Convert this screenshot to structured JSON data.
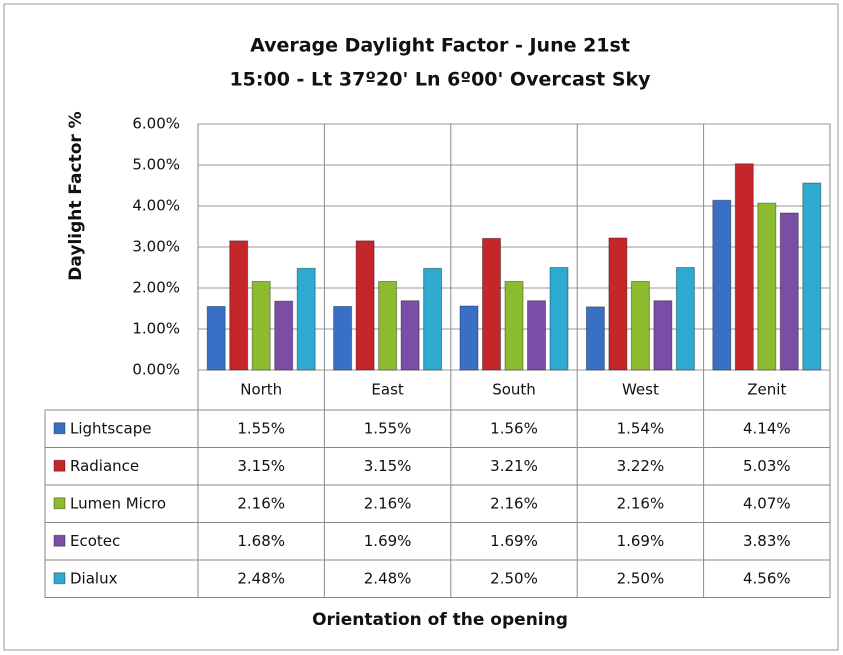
{
  "chart_data": {
    "type": "bar",
    "title": "Average Daylight Factor - June 21st",
    "subtitle": "15:00 - Lt 37º20' Ln 6º00'    Overcast Sky",
    "y_label": "Daylight Factor %",
    "x_label": "Orientation of the opening",
    "categories": [
      "North",
      "East",
      "South",
      "West",
      "Zenit"
    ],
    "ylim": [
      0,
      6
    ],
    "yticks": [
      {
        "value": 0,
        "label": "0.00%"
      },
      {
        "value": 1,
        "label": "1.00%"
      },
      {
        "value": 2,
        "label": "2.00%"
      },
      {
        "value": 3,
        "label": "3.00%"
      },
      {
        "value": 4,
        "label": "4.00%"
      },
      {
        "value": 5,
        "label": "5.00%"
      },
      {
        "value": 6,
        "label": "6.00%"
      }
    ],
    "grid": true,
    "series": [
      {
        "name": "Lightscape",
        "color": "#3a6fc6",
        "values": [
          1.55,
          1.55,
          1.56,
          1.54,
          4.14
        ],
        "value_labels": [
          "1.55%",
          "1.55%",
          "1.56%",
          "1.54%",
          "4.14%"
        ]
      },
      {
        "name": "Radiance",
        "color": "#c4262a",
        "values": [
          3.15,
          3.15,
          3.21,
          3.22,
          5.03
        ],
        "value_labels": [
          "3.15%",
          "3.15%",
          "3.21%",
          "3.22%",
          "5.03%"
        ]
      },
      {
        "name": "Lumen Micro",
        "color": "#8dbb2f",
        "values": [
          2.16,
          2.16,
          2.16,
          2.16,
          4.07
        ],
        "value_labels": [
          "2.16%",
          "2.16%",
          "2.16%",
          "2.16%",
          "4.07%"
        ]
      },
      {
        "name": "Ecotec",
        "color": "#7a4ea6",
        "values": [
          1.68,
          1.69,
          1.69,
          1.69,
          3.83
        ],
        "value_labels": [
          "1.68%",
          "1.69%",
          "1.69%",
          "1.69%",
          "3.83%"
        ]
      },
      {
        "name": "Dialux",
        "color": "#2ea9cf",
        "values": [
          2.48,
          2.48,
          2.5,
          2.5,
          4.56
        ],
        "value_labels": [
          "2.48%",
          "2.48%",
          "2.50%",
          "2.50%",
          "4.56%"
        ]
      }
    ]
  }
}
